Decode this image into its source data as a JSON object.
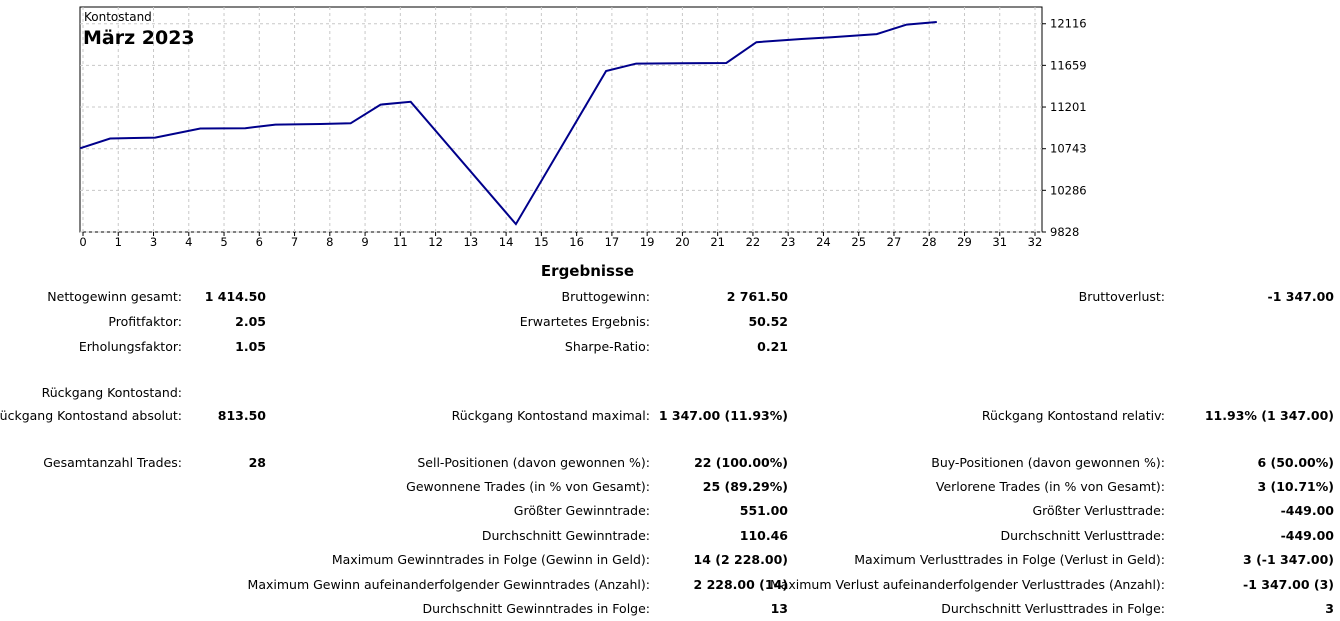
{
  "chart_data": {
    "type": "line",
    "label": "Kontostand",
    "title": "März 2023",
    "x": [
      0,
      1,
      2.5,
      4,
      5.5,
      6.5,
      8,
      9,
      10,
      11,
      14.5,
      17.5,
      18.5,
      20,
      21.5,
      22.5,
      24,
      25,
      26.5,
      27.5,
      28.5
    ],
    "values": [
      10748,
      10855,
      10865,
      10965,
      10968,
      11008,
      11015,
      11022,
      11228,
      11258,
      9915,
      11597,
      11678,
      11682,
      11685,
      11913,
      11948,
      11968,
      12002,
      12107,
      12135
    ],
    "x_ticks": [
      "0",
      "1",
      "3",
      "4",
      "5",
      "6",
      "7",
      "8",
      "9",
      "11",
      "12",
      "13",
      "14",
      "15",
      "16",
      "17",
      "19",
      "20",
      "21",
      "22",
      "23",
      "24",
      "25",
      "27",
      "28",
      "29",
      "31",
      "32"
    ],
    "y_ticks": [
      "12116",
      "11659",
      "11201",
      "10743",
      "10286",
      "9828"
    ],
    "ylim": [
      9828,
      12300
    ],
    "grid": true,
    "line_color": "#00008b"
  },
  "report": {
    "title": "Ergebnisse",
    "col1": [
      {
        "label": "Nettogewinn gesamt:",
        "value": "1 414.50"
      },
      {
        "label": "Profitfaktor:",
        "value": "2.05"
      },
      {
        "label": "Erholungsfaktor:",
        "value": "1.05"
      },
      {
        "label": "Rückgang Kontostand:",
        "value": ""
      },
      {
        "label": "Rückgang Kontostand absolut:",
        "value": "813.50"
      },
      {
        "label": "Gesamtanzahl Trades:",
        "value": "28"
      }
    ],
    "col2": [
      {
        "label": "Bruttogewinn:",
        "value": "2 761.50"
      },
      {
        "label": "Erwartetes Ergebnis:",
        "value": "50.52"
      },
      {
        "label": "Sharpe-Ratio:",
        "value": "0.21"
      },
      {
        "label": "Rückgang Kontostand maximal:",
        "value": "1 347.00 (11.93%)"
      },
      {
        "label": "Sell-Positionen (davon gewonnen %):",
        "value": "22 (100.00%)"
      },
      {
        "label": "Gewonnene Trades (in % von Gesamt):",
        "value": "25 (89.29%)"
      },
      {
        "label": "Größter Gewinntrade:",
        "value": "551.00"
      },
      {
        "label": "Durchschnitt Gewinntrade:",
        "value": "110.46"
      },
      {
        "label": "Maximum Gewinntrades in Folge (Gewinn in Geld):",
        "value": "14 (2 228.00)"
      },
      {
        "label": "Maximum Gewinn aufeinanderfolgender Gewinntrades (Anzahl):",
        "value": "2 228.00 (14)"
      },
      {
        "label": "Durchschnitt Gewinntrades in Folge:",
        "value": "13"
      }
    ],
    "col3": [
      {
        "label": "Bruttoverlust:",
        "value": "-1 347.00"
      },
      {
        "label": "Rückgang Kontostand relativ:",
        "value": "11.93% (1 347.00)"
      },
      {
        "label": "Buy-Positionen (davon gewonnen %):",
        "value": "6 (50.00%)"
      },
      {
        "label": "Verlorene Trades (in % von Gesamt):",
        "value": "3 (10.71%)"
      },
      {
        "label": "Größter Verlusttrade:",
        "value": "-449.00"
      },
      {
        "label": "Durchschnitt Verlusttrade:",
        "value": "-449.00"
      },
      {
        "label": "Maximum Verlusttrades in Folge (Verlust in Geld):",
        "value": "3 (-1 347.00)"
      },
      {
        "label": "Maximum Verlust aufeinanderfolgender Verlusttrades (Anzahl):",
        "value": "-1 347.00 (3)"
      },
      {
        "label": "Durchschnitt Verlusttrades in Folge:",
        "value": "3"
      }
    ]
  }
}
